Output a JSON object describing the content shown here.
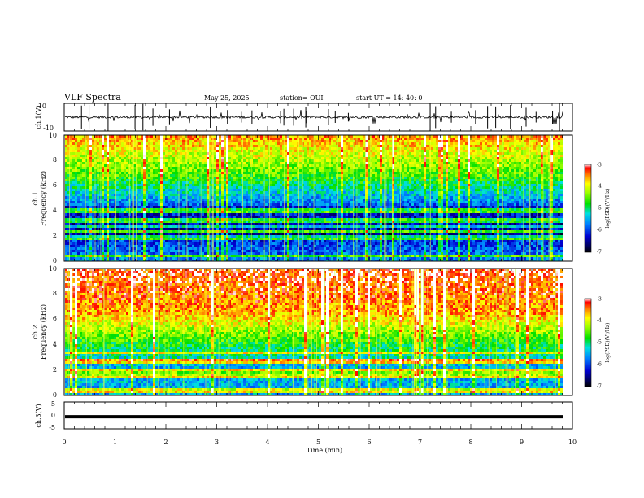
{
  "header": {
    "title": "VLF Spectra",
    "date": "May 25, 2025",
    "station": "station= OUI",
    "start_time": "start  UT  =   14: 40: 0"
  },
  "chart_data": [
    {
      "type": "line",
      "panel": "ch1-waveform",
      "ylabel": "ch.1(V)",
      "ylim": [
        -10,
        10
      ],
      "yticks": [
        "10",
        "-10"
      ],
      "baseline": 0,
      "color": "#000000"
    },
    {
      "type": "heatmap",
      "panel": "ch1-spectrogram",
      "ylabel_top": "ch.1",
      "ylabel": "Frequency (kHz)",
      "ylim": [
        0,
        10
      ],
      "yticks": [
        "0",
        "2",
        "4",
        "6",
        "8",
        "10"
      ],
      "colorbar": {
        "label": "log(PSD)(V²/Hz)",
        "range": [
          -7,
          -3
        ],
        "ticks": [
          "-3",
          "-4",
          "-5",
          "-6",
          "-7"
        ]
      }
    },
    {
      "type": "heatmap",
      "panel": "ch2-spectrogram",
      "ylabel_top": "ch.2",
      "ylabel": "Frequency (kHz)",
      "ylim": [
        0,
        10
      ],
      "yticks": [
        "0",
        "2",
        "4",
        "6",
        "8",
        "10"
      ],
      "colorbar": {
        "label": "log(PSD)(V²/Hz)",
        "range": [
          -7,
          -3
        ],
        "ticks": [
          "-3",
          "-4",
          "-5",
          "-6",
          "-7"
        ]
      }
    },
    {
      "type": "line",
      "panel": "ch3-waveform",
      "ylabel": "ch.3(V)",
      "ylim": [
        -5,
        5
      ],
      "yticks": [
        "5",
        "0",
        "-5"
      ],
      "baseline": -0.5,
      "color": "#000000"
    }
  ],
  "xaxis": {
    "label": "Time (min)",
    "xlim": [
      0,
      10
    ],
    "ticks": [
      "0",
      "1",
      "2",
      "3",
      "4",
      "5",
      "6",
      "7",
      "8",
      "9",
      "10"
    ],
    "data_end": 9.82
  }
}
